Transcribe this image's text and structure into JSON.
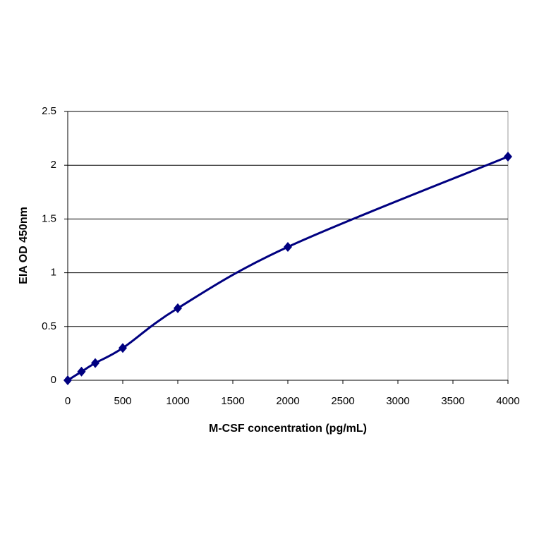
{
  "chart_data": {
    "type": "scatter-line",
    "xlabel": "M-CSF concentration (pg/mL)",
    "ylabel": "EIA OD 450nm",
    "x": [
      0,
      125,
      250,
      500,
      1000,
      2000,
      4000
    ],
    "values": [
      0,
      0.08,
      0.16,
      0.3,
      0.67,
      1.24,
      2.08
    ],
    "color": "#000080",
    "smooth": true,
    "xlim": [
      0,
      4000
    ],
    "xticks": [
      0,
      500,
      1000,
      1500,
      2000,
      2500,
      3000,
      3500,
      4000
    ],
    "ylim": [
      0,
      2.5
    ],
    "yticks": [
      0,
      0.5,
      1,
      1.5,
      2,
      2.5
    ],
    "grid": true
  }
}
